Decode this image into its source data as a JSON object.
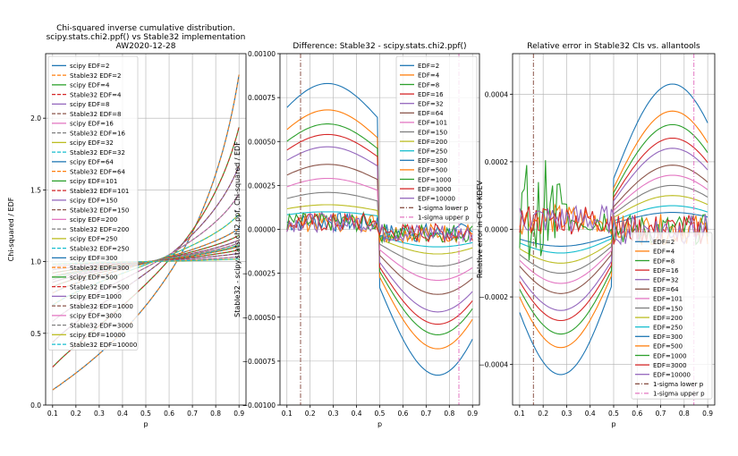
{
  "colors": [
    "#1f77b4",
    "#ff7f0e",
    "#2ca02c",
    "#d62728",
    "#9467bd",
    "#8c564b",
    "#e377c2",
    "#7f7f7f",
    "#bcbd22",
    "#17becf"
  ],
  "chart_data": [
    {
      "type": "line",
      "title": "Chi-squared inverse cumulative distribution.\nscipy.stats.chi2.ppf() vs Stable32 implementation\nAW2020-12-28",
      "xlabel": "p",
      "ylabel": "Chi-squared / EDF",
      "xlim": [
        0.07,
        0.93
      ],
      "ylim": [
        0.0,
        2.45
      ],
      "xticks": [
        "0.1",
        "0.2",
        "0.3",
        "0.4",
        "0.5",
        "0.6",
        "0.7",
        "0.8",
        "0.9"
      ],
      "yticks": [
        "0.0",
        "0.5",
        "1.0",
        "1.5",
        "2.0"
      ],
      "grid": true,
      "legend_placement": "upper-left",
      "edf": [
        2,
        4,
        8,
        16,
        32,
        64,
        101,
        150,
        200,
        250,
        300,
        500,
        1000,
        3000,
        10000
      ],
      "p_range": [
        0.1,
        0.9
      ],
      "legend": [
        "scipy EDF=2",
        "Stable32 EDF=2",
        "scipy EDF=4",
        "Stable32 EDF=4",
        "scipy EDF=8",
        "Stable32 EDF=8",
        "scipy EDF=16",
        "Stable32 EDF=16",
        "scipy EDF=32",
        "Stable32 EDF=32",
        "scipy EDF=64",
        "Stable32 EDF=64",
        "scipy EDF=101",
        "Stable32 EDF=101",
        "scipy EDF=150",
        "Stable32 EDF=150",
        "scipy EDF=200",
        "Stable32 EDF=200",
        "scipy EDF=250",
        "Stable32 EDF=250",
        "scipy EDF=300",
        "Stable32 EDF=300",
        "scipy EDF=500",
        "Stable32 EDF=500",
        "scipy EDF=1000",
        "Stable32 EDF=1000",
        "scipy EDF=3000",
        "Stable32 EDF=3000",
        "scipy EDF=10000",
        "Stable32 EDF=10000"
      ]
    },
    {
      "type": "line",
      "title": "Difference: Stable32 - scipy.stats.chi2.ppf()",
      "xlabel": "p",
      "ylabel": "Stable32 - scipy.stats.chi2.ppf, Chi-squared / EDF",
      "xlim": [
        0.07,
        0.93
      ],
      "ylim": [
        -0.001,
        0.001
      ],
      "xticks": [
        "0.1",
        "0.2",
        "0.3",
        "0.4",
        "0.5",
        "0.6",
        "0.7",
        "0.8",
        "0.9"
      ],
      "yticks": [
        "−0.00100",
        "−0.00075",
        "−0.00050",
        "−0.00025",
        "0.00000",
        "0.00025",
        "0.00050",
        "0.00075",
        "0.00100"
      ],
      "grid": true,
      "legend_placement": "upper-right",
      "legend": [
        "EDF=2",
        "EDF=4",
        "EDF=8",
        "EDF=16",
        "EDF=32",
        "EDF=64",
        "EDF=101",
        "EDF=150",
        "EDF=200",
        "EDF=250",
        "EDF=300",
        "EDF=500",
        "EDF=1000",
        "EDF=3000",
        "EDF=10000",
        "1-sigma lower p",
        "1-sigma upper p"
      ],
      "peak_abs_diff": [
        0.00083,
        0.00068,
        0.0006,
        0.00054,
        0.00047,
        0.00037,
        0.00029,
        0.00021,
        0.00014,
        0.0001,
        7e-05,
        5e-05,
        3e-05,
        2e-05,
        1e-05
      ],
      "sigma_lines_p": [
        0.1587,
        0.8413
      ]
    },
    {
      "type": "line",
      "title": "Relative error in Stable32 CIs vs. allantools",
      "xlabel": "p",
      "ylabel": "Relative error in CI of KDEV",
      "xlim": [
        0.07,
        0.93
      ],
      "ylim": [
        -0.00052,
        0.00052
      ],
      "xticks": [
        "0.1",
        "0.2",
        "0.3",
        "0.4",
        "0.5",
        "0.6",
        "0.7",
        "0.8",
        "0.9"
      ],
      "yticks": [
        "−0.0004",
        "−0.0002",
        "0.0000",
        "0.0002",
        "0.0004"
      ],
      "grid": true,
      "legend_placement": "lower-right",
      "legend": [
        "EDF=2",
        "EDF=4",
        "EDF=8",
        "EDF=16",
        "EDF=32",
        "EDF=64",
        "EDF=101",
        "EDF=150",
        "EDF=200",
        "EDF=250",
        "EDF=300",
        "EDF=500",
        "EDF=1000",
        "EDF=3000",
        "EDF=10000",
        "1-sigma lower p",
        "1-sigma upper p"
      ],
      "peak_abs_err": [
        0.00043,
        0.00035,
        0.00031,
        0.00027,
        0.00024,
        0.00019,
        0.00016,
        0.00013,
        0.0001,
        7e-05,
        5e-05,
        3e-05,
        2e-05,
        1e-05,
        5e-06
      ],
      "sigma_lines_p": [
        0.1587,
        0.8413
      ]
    }
  ]
}
